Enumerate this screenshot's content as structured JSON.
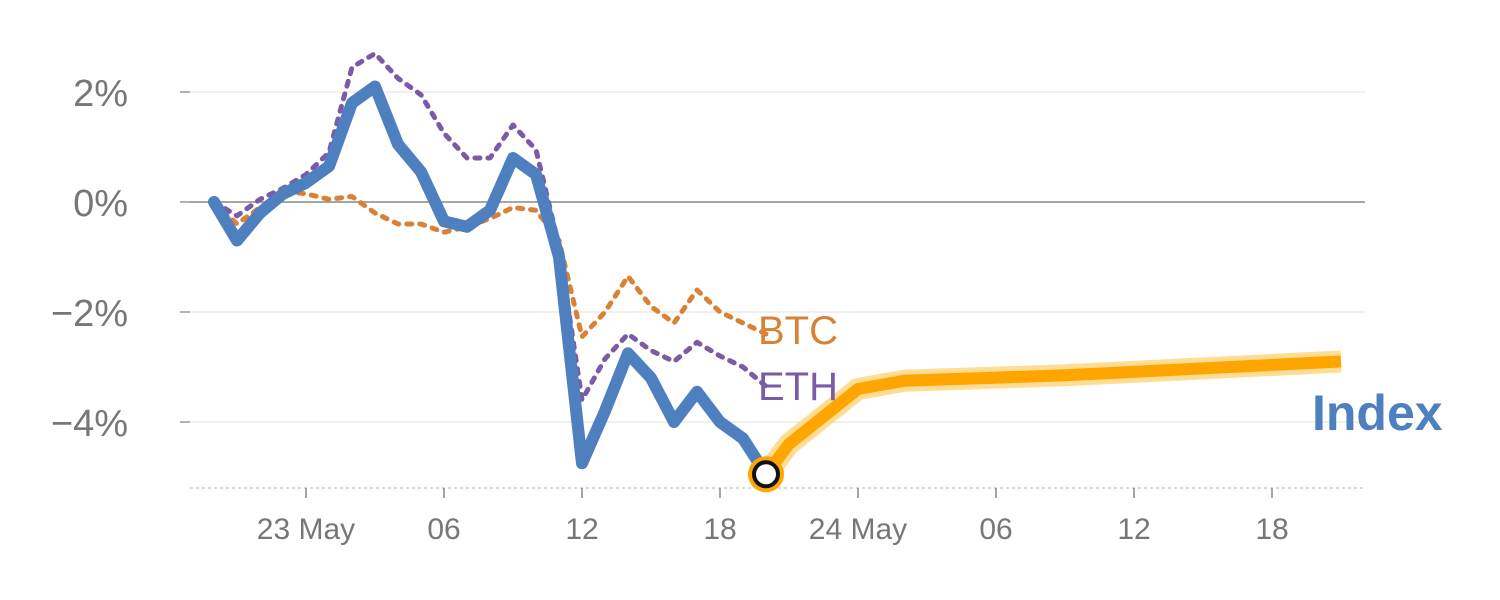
{
  "chart_data": {
    "type": "line",
    "title": "",
    "xlabel": "",
    "ylabel": "",
    "x_unit": "hours",
    "x_ticks": [
      {
        "x": 3,
        "label": "23 May"
      },
      {
        "x": 9,
        "label": "06"
      },
      {
        "x": 15,
        "label": "12"
      },
      {
        "x": 21,
        "label": "18"
      },
      {
        "x": 27,
        "label": "24 May"
      },
      {
        "x": 33,
        "label": "06"
      },
      {
        "x": 39,
        "label": "12"
      },
      {
        "x": 45,
        "label": "18"
      }
    ],
    "y_ticks": [
      {
        "y": 2,
        "label": "2%"
      },
      {
        "y": 0,
        "label": "0%"
      },
      {
        "y": -2,
        "label": "−2%"
      },
      {
        "y": -4,
        "label": "−4%"
      }
    ],
    "xlim": [
      -1.5,
      49.5
    ],
    "ylim": [
      -5.2,
      2.9
    ],
    "grid": true,
    "series": [
      {
        "name": "Index",
        "style": "solid",
        "color": "#4e7fbf",
        "points": [
          [
            -1,
            0
          ],
          [
            0,
            -0.7
          ],
          [
            1,
            -0.2
          ],
          [
            2,
            0.15
          ],
          [
            3,
            0.35
          ],
          [
            4,
            0.65
          ],
          [
            5,
            1.8
          ],
          [
            6,
            2.1
          ],
          [
            7,
            1.05
          ],
          [
            8,
            0.55
          ],
          [
            9,
            -0.35
          ],
          [
            10,
            -0.45
          ],
          [
            11,
            -0.15
          ],
          [
            12,
            0.8
          ],
          [
            13,
            0.5
          ],
          [
            14,
            -1.0
          ],
          [
            15,
            -4.75
          ],
          [
            16,
            -3.8
          ],
          [
            17,
            -2.75
          ],
          [
            18,
            -3.2
          ],
          [
            19,
            -4.0
          ],
          [
            20,
            -3.45
          ],
          [
            21,
            -4.0
          ],
          [
            22,
            -4.3
          ],
          [
            23,
            -4.95
          ]
        ]
      },
      {
        "name": "BTC",
        "style": "dotted",
        "color": "#d98236",
        "points": [
          [
            -1,
            0
          ],
          [
            0,
            -0.4
          ],
          [
            1,
            -0.1
          ],
          [
            2,
            0.2
          ],
          [
            3,
            0.15
          ],
          [
            4,
            0.05
          ],
          [
            5,
            0.1
          ],
          [
            6,
            -0.2
          ],
          [
            7,
            -0.4
          ],
          [
            8,
            -0.4
          ],
          [
            9,
            -0.55
          ],
          [
            10,
            -0.45
          ],
          [
            11,
            -0.3
          ],
          [
            12,
            -0.1
          ],
          [
            13,
            -0.15
          ],
          [
            14,
            -0.7
          ],
          [
            15,
            -2.45
          ],
          [
            16,
            -2.0
          ],
          [
            17,
            -1.35
          ],
          [
            18,
            -1.9
          ],
          [
            19,
            -2.2
          ],
          [
            20,
            -1.6
          ],
          [
            21,
            -2.0
          ],
          [
            22,
            -2.2
          ],
          [
            23,
            -2.4
          ]
        ]
      },
      {
        "name": "ETH",
        "style": "dotted",
        "color": "#7b5aa6",
        "points": [
          [
            -1,
            0
          ],
          [
            0,
            -0.25
          ],
          [
            1,
            0.05
          ],
          [
            2,
            0.25
          ],
          [
            3,
            0.5
          ],
          [
            4,
            0.9
          ],
          [
            5,
            2.45
          ],
          [
            6,
            2.7
          ],
          [
            7,
            2.25
          ],
          [
            8,
            1.95
          ],
          [
            9,
            1.25
          ],
          [
            10,
            0.8
          ],
          [
            11,
            0.8
          ],
          [
            12,
            1.4
          ],
          [
            13,
            0.95
          ],
          [
            14,
            -0.8
          ],
          [
            15,
            -3.6
          ],
          [
            16,
            -2.85
          ],
          [
            17,
            -2.4
          ],
          [
            18,
            -2.7
          ],
          [
            19,
            -2.9
          ],
          [
            20,
            -2.55
          ],
          [
            21,
            -2.8
          ],
          [
            22,
            -3.0
          ],
          [
            23,
            -3.35
          ]
        ]
      },
      {
        "name": "",
        "style": "forecast",
        "color": "#ffa500",
        "points": [
          [
            23,
            -4.95
          ],
          [
            24,
            -4.4
          ],
          [
            27,
            -3.4
          ],
          [
            29,
            -3.25
          ],
          [
            36,
            -3.15
          ],
          [
            48,
            -2.9
          ]
        ]
      }
    ],
    "marker": {
      "x": 23,
      "y": -4.95
    },
    "labels": {
      "btc": "BTC",
      "eth": "ETH",
      "index": "Index"
    }
  },
  "colors": {
    "index": "#4e7fbf",
    "btc": "#d98236",
    "eth": "#7b5aa6",
    "forecast": "#ffa500",
    "forecast_glow": "#ffd98a",
    "tick_text": "#777777",
    "grid": "#e6e6e6",
    "zero_line": "#888888"
  }
}
